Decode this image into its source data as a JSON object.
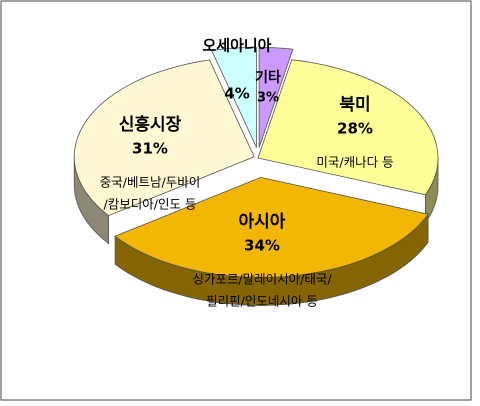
{
  "chart_data": {
    "type": "pie3d",
    "categories": [
      "기타",
      "북미",
      "아시아",
      "신흥시장",
      "오세아니아"
    ],
    "values": [
      3,
      28,
      34,
      31,
      4
    ],
    "value_labels": [
      "3%",
      "28%",
      "34%",
      "31%",
      "4%"
    ],
    "descriptions": [
      [],
      [
        "미국/캐나다 등"
      ],
      [
        "싱가포르/말레이시아/태국/",
        "필리핀/인도네시아 등"
      ],
      [
        "중국/베트남/두바이",
        "/캄보디아/인도 등"
      ],
      []
    ],
    "colors": [
      "#cc99ff",
      "#ffff99",
      "#f2b705",
      "#fff8d2",
      "#ccffff"
    ]
  }
}
